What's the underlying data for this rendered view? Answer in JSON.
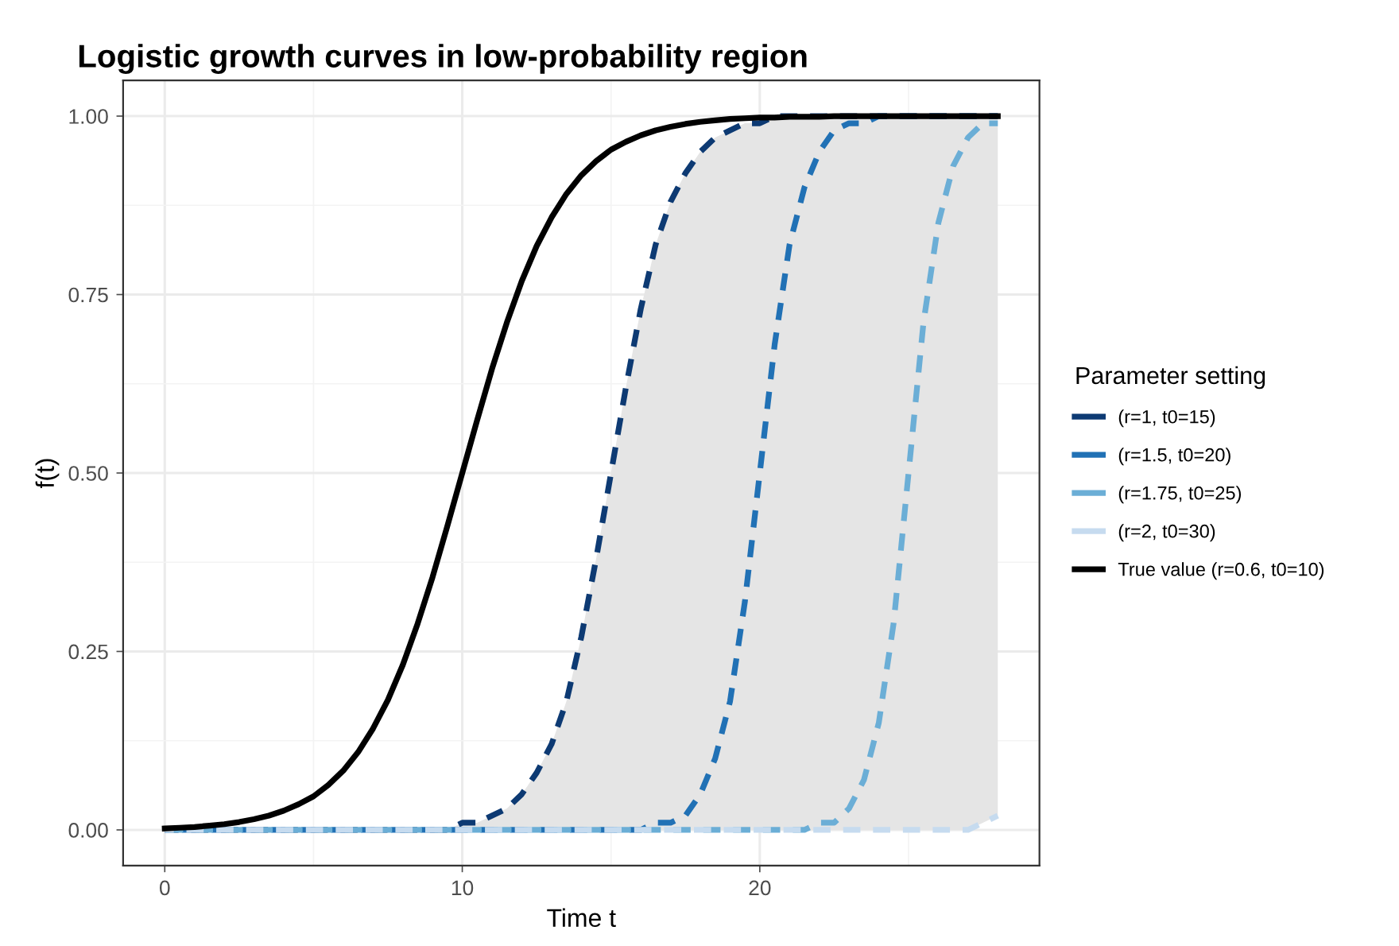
{
  "chart_data": {
    "type": "line",
    "title": "Logistic growth curves in low-probability region",
    "xlabel": "Time t",
    "ylabel": "f(t)",
    "legend_title": "Parameter setting",
    "x": [
      0,
      0.5,
      1,
      1.5,
      2,
      2.5,
      3,
      3.5,
      4,
      4.5,
      5,
      5.5,
      6,
      6.5,
      7,
      7.5,
      8,
      8.5,
      9,
      9.5,
      10,
      10.5,
      11,
      11.5,
      12,
      12.5,
      13,
      13.5,
      14,
      14.5,
      15,
      15.5,
      16,
      16.5,
      17,
      17.5,
      18,
      18.5,
      19,
      19.5,
      20,
      20.5,
      21,
      21.5,
      22,
      22.5,
      23,
      23.5,
      24,
      24.5,
      25,
      25.5,
      26,
      26.5,
      27,
      27.5,
      28
    ],
    "series": [
      {
        "name": "(r=1, t0=15)",
        "color": "#0d3a73",
        "line_style": "dashed",
        "values": [
          0,
          0,
          0,
          0,
          0,
          0,
          0,
          0,
          0,
          0,
          0,
          0,
          0,
          0,
          0,
          0,
          0,
          0,
          0,
          0,
          0.01,
          0.01,
          0.02,
          0.03,
          0.05,
          0.08,
          0.12,
          0.18,
          0.27,
          0.38,
          0.5,
          0.62,
          0.73,
          0.82,
          0.88,
          0.92,
          0.95,
          0.97,
          0.98,
          0.99,
          0.99,
          1,
          1,
          1,
          1,
          1,
          1,
          1,
          1,
          1,
          1,
          1,
          1,
          1,
          1,
          1,
          1
        ],
        "lower": [
          0,
          0,
          0,
          0,
          0,
          0,
          0,
          0,
          0,
          0,
          0,
          0,
          0,
          0,
          0,
          0,
          0,
          0,
          0,
          0,
          0,
          0,
          0,
          0,
          0,
          0,
          0,
          0,
          0,
          0,
          0,
          0,
          0,
          0,
          0,
          0,
          0,
          0,
          0,
          0,
          0,
          0,
          0,
          0,
          0,
          0,
          0,
          0,
          0,
          0,
          0,
          0,
          0,
          0,
          0,
          0.01,
          0.02
        ],
        "upper": [
          0,
          0,
          0,
          0,
          0,
          0,
          0,
          0,
          0,
          0,
          0,
          0,
          0,
          0,
          0,
          0,
          0,
          0,
          0,
          0,
          0.01,
          0.01,
          0.02,
          0.03,
          0.05,
          0.08,
          0.12,
          0.18,
          0.27,
          0.38,
          0.5,
          0.62,
          0.73,
          0.82,
          0.88,
          0.92,
          0.95,
          0.97,
          0.98,
          0.99,
          0.99,
          1,
          1,
          1,
          1,
          1,
          1,
          1,
          1,
          1,
          1,
          1,
          1,
          1,
          1,
          1,
          1
        ]
      },
      {
        "name": "(r=1.5, t0=20)",
        "color": "#2171b5",
        "line_style": "dashed",
        "values": [
          0,
          0,
          0,
          0,
          0,
          0,
          0,
          0,
          0,
          0,
          0,
          0,
          0,
          0,
          0,
          0,
          0,
          0,
          0,
          0,
          0,
          0,
          0,
          0,
          0,
          0,
          0,
          0,
          0,
          0,
          0,
          0,
          0,
          0.01,
          0.01,
          0.02,
          0.05,
          0.1,
          0.18,
          0.32,
          0.5,
          0.68,
          0.82,
          0.9,
          0.95,
          0.98,
          0.99,
          0.99,
          1,
          1,
          1,
          1,
          1,
          1,
          1,
          1,
          1
        ]
      },
      {
        "name": "(r=1.75, t0=25)",
        "color": "#6baed6",
        "line_style": "dashed",
        "values": [
          0,
          0,
          0,
          0,
          0,
          0,
          0,
          0,
          0,
          0,
          0,
          0,
          0,
          0,
          0,
          0,
          0,
          0,
          0,
          0,
          0,
          0,
          0,
          0,
          0,
          0,
          0,
          0,
          0,
          0,
          0,
          0,
          0,
          0,
          0,
          0,
          0,
          0,
          0,
          0,
          0,
          0,
          0,
          0,
          0.01,
          0.01,
          0.03,
          0.07,
          0.15,
          0.29,
          0.5,
          0.71,
          0.85,
          0.93,
          0.97,
          0.99,
          0.99
        ]
      },
      {
        "name": "(r=2, t0=30)",
        "color": "#c6dbef",
        "line_style": "dashed",
        "values": [
          0,
          0,
          0,
          0,
          0,
          0,
          0,
          0,
          0,
          0,
          0,
          0,
          0,
          0,
          0,
          0,
          0,
          0,
          0,
          0,
          0,
          0,
          0,
          0,
          0,
          0,
          0,
          0,
          0,
          0,
          0,
          0,
          0,
          0,
          0,
          0,
          0,
          0,
          0,
          0,
          0,
          0,
          0,
          0,
          0,
          0,
          0,
          0,
          0,
          0,
          0,
          0,
          0,
          0,
          0,
          0.01,
          0.02
        ]
      },
      {
        "name": "True value (r=0.6, t0=10)",
        "color": "#000000",
        "line_style": "solid",
        "values": [
          0.002,
          0.003,
          0.004,
          0.006,
          0.008,
          0.011,
          0.015,
          0.02,
          0.027,
          0.036,
          0.047,
          0.063,
          0.083,
          0.109,
          0.142,
          0.182,
          0.231,
          0.289,
          0.354,
          0.426,
          0.5,
          0.574,
          0.646,
          0.711,
          0.769,
          0.818,
          0.858,
          0.891,
          0.917,
          0.937,
          0.953,
          0.964,
          0.973,
          0.98,
          0.985,
          0.989,
          0.992,
          0.994,
          0.996,
          0.997,
          0.998,
          0.998,
          0.999,
          0.999,
          0.999,
          1,
          1,
          1,
          1,
          1,
          1,
          1,
          1,
          1,
          1,
          1,
          1
        ]
      }
    ],
    "xlim": [
      -1.4,
      29.4
    ],
    "xticks": [
      0,
      10,
      20
    ],
    "ylim": [
      -0.05,
      1.05
    ],
    "yticks": [
      {
        "value": 0,
        "label": "0.00"
      },
      {
        "value": 0.25,
        "label": "0.25"
      },
      {
        "value": 0.5,
        "label": "0.50"
      },
      {
        "value": 0.75,
        "label": "0.75"
      },
      {
        "value": 1,
        "label": "1.00"
      }
    ],
    "grid": true,
    "legend": "right",
    "marker": "none"
  }
}
